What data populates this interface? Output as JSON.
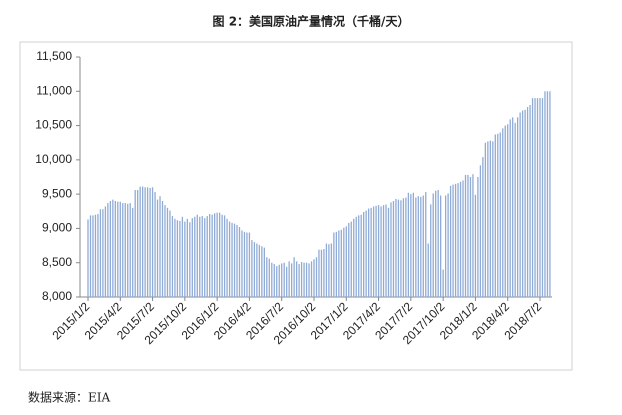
{
  "chart_data": {
    "type": "bar",
    "title": "图 2：美国原油产量情况（千桶/天）",
    "source": "数据来源：EIA",
    "categories": [
      "2015/1/2",
      null,
      null,
      null,
      null,
      null,
      null,
      null,
      null,
      null,
      null,
      null,
      null,
      "2015/4/2",
      null,
      null,
      null,
      null,
      null,
      null,
      null,
      null,
      null,
      null,
      null,
      null,
      "2015/7/2",
      null,
      null,
      null,
      null,
      null,
      null,
      null,
      null,
      null,
      null,
      null,
      null,
      "2015/10/2",
      null,
      null,
      null,
      null,
      null,
      null,
      null,
      null,
      null,
      null,
      null,
      null,
      "2016/1/2",
      null,
      null,
      null,
      null,
      null,
      null,
      null,
      null,
      null,
      null,
      null,
      null,
      "2016/4/2",
      null,
      null,
      null,
      null,
      null,
      null,
      null,
      null,
      null,
      null,
      null,
      null,
      "2016/7/2",
      null,
      null,
      null,
      null,
      null,
      null,
      null,
      null,
      null,
      null,
      null,
      null,
      "2016/10/2",
      null,
      null,
      null,
      null,
      null,
      null,
      null,
      null,
      null,
      null,
      null,
      null,
      "2017/1/2",
      null,
      null,
      null,
      null,
      null,
      null,
      null,
      null,
      null,
      null,
      null,
      null,
      "2017/4/2",
      null,
      null,
      null,
      null,
      null,
      null,
      null,
      null,
      null,
      null,
      null,
      null,
      "2017/7/2",
      null,
      null,
      null,
      null,
      null,
      null,
      null,
      null,
      null,
      null,
      null,
      null,
      "2017/10/2",
      null,
      null,
      null,
      null,
      null,
      null,
      null,
      null,
      null,
      null,
      null,
      null,
      "2018/1/2",
      null,
      null,
      null,
      null,
      null,
      null,
      null,
      null,
      null,
      null,
      null,
      null,
      "2018/4/2",
      null,
      null,
      null,
      null,
      null,
      null,
      null,
      null,
      null,
      null,
      null,
      null,
      "2018/7/2",
      null,
      null,
      null,
      null
    ],
    "values": [
      9130,
      9190,
      9190,
      9200,
      9210,
      9280,
      9280,
      9320,
      9370,
      9400,
      9420,
      9400,
      9390,
      9390,
      9370,
      9370,
      9360,
      9370,
      9300,
      9560,
      9560,
      9610,
      9610,
      9600,
      9600,
      9590,
      9600,
      9530,
      9420,
      9470,
      9400,
      9340,
      9300,
      9260,
      9180,
      9140,
      9120,
      9110,
      9170,
      9100,
      9140,
      9090,
      9150,
      9170,
      9200,
      9170,
      9180,
      9150,
      9180,
      9210,
      9200,
      9220,
      9230,
      9230,
      9200,
      9190,
      9140,
      9100,
      9080,
      9070,
      9050,
      9020,
      8970,
      8950,
      8940,
      8940,
      8830,
      8800,
      8780,
      8760,
      8740,
      8720,
      8580,
      8560,
      8500,
      8480,
      8450,
      8470,
      8490,
      8500,
      8440,
      8520,
      8490,
      8580,
      8520,
      8480,
      8510,
      8500,
      8500,
      8490,
      8520,
      8550,
      8580,
      8690,
      8690,
      8700,
      8780,
      8770,
      8780,
      8940,
      8950,
      8970,
      8980,
      9010,
      9030,
      9080,
      9100,
      9140,
      9170,
      9190,
      9200,
      9240,
      9260,
      9290,
      9300,
      9320,
      9330,
      9340,
      9320,
      9340,
      9350,
      9300,
      9380,
      9400,
      9430,
      9420,
      9410,
      9440,
      9450,
      9520,
      9500,
      9520,
      9450,
      9470,
      9460,
      9480,
      9530,
      8780,
      9350,
      9510,
      9550,
      9560,
      9480,
      8400,
      9480,
      9510,
      9620,
      9640,
      9650,
      9660,
      9680,
      9700,
      9780,
      9780,
      9750,
      9790,
      9490,
      9750,
      9920,
      10040,
      10250,
      10270,
      10280,
      10270,
      10370,
      10380,
      10400,
      10460,
      10500,
      10520,
      10590,
      10620,
      10540,
      10620,
      10690,
      10720,
      10730,
      10770,
      10800,
      10900,
      10900,
      10900,
      10900,
      10900,
      11000,
      11000,
      11000
    ],
    "color": "#8fabd6",
    "ylim": [
      8000,
      11500
    ],
    "yticks": [
      {
        "value": 8000,
        "label": "8,000"
      },
      {
        "value": 8500,
        "label": "8,500"
      },
      {
        "value": 9000,
        "label": "9,000"
      },
      {
        "value": 9500,
        "label": "9,500"
      },
      {
        "value": 10000,
        "label": "10,000"
      },
      {
        "value": 10500,
        "label": "10,500"
      },
      {
        "value": 11000,
        "label": "11,000"
      },
      {
        "value": 11500,
        "label": "11,500"
      }
    ],
    "grid": false
  }
}
